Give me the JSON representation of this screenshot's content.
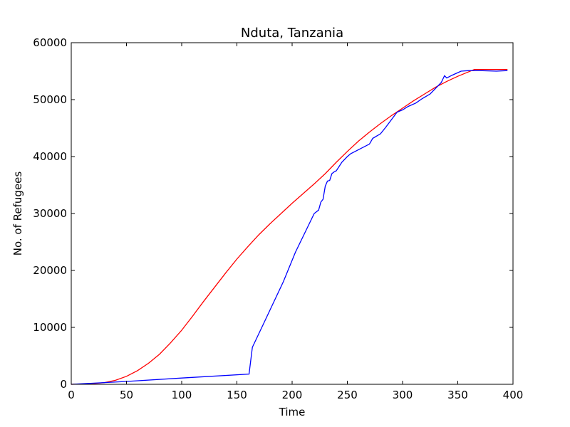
{
  "chart_data": {
    "type": "line",
    "title": "Nduta, Tanzania",
    "xlabel": "Time",
    "ylabel": "No. of Refugees",
    "xlim": [
      0,
      400
    ],
    "ylim": [
      0,
      60000
    ],
    "xticks": [
      0,
      50,
      100,
      150,
      200,
      250,
      300,
      350,
      400
    ],
    "yticks": [
      0,
      10000,
      20000,
      30000,
      40000,
      50000,
      60000
    ],
    "grid": false,
    "legend": "none",
    "series": [
      {
        "color": "#ff0000",
        "points": [
          [
            0,
            0
          ],
          [
            10,
            50
          ],
          [
            20,
            130
          ],
          [
            30,
            300
          ],
          [
            40,
            700
          ],
          [
            50,
            1400
          ],
          [
            60,
            2400
          ],
          [
            70,
            3700
          ],
          [
            80,
            5300
          ],
          [
            90,
            7300
          ],
          [
            100,
            9500
          ],
          [
            110,
            12000
          ],
          [
            120,
            14600
          ],
          [
            130,
            17100
          ],
          [
            140,
            19600
          ],
          [
            150,
            22000
          ],
          [
            160,
            24200
          ],
          [
            170,
            26300
          ],
          [
            180,
            28200
          ],
          [
            190,
            30000
          ],
          [
            200,
            31800
          ],
          [
            210,
            33500
          ],
          [
            220,
            35200
          ],
          [
            230,
            37000
          ],
          [
            240,
            39000
          ],
          [
            250,
            40900
          ],
          [
            260,
            42700
          ],
          [
            270,
            44300
          ],
          [
            280,
            45800
          ],
          [
            290,
            47200
          ],
          [
            300,
            48500
          ],
          [
            310,
            49800
          ],
          [
            320,
            51000
          ],
          [
            330,
            52200
          ],
          [
            340,
            53200
          ],
          [
            350,
            54100
          ],
          [
            360,
            54900
          ],
          [
            365,
            55300
          ],
          [
            375,
            55300
          ],
          [
            395,
            55300
          ]
        ]
      },
      {
        "color": "#0000ff",
        "points": [
          [
            0,
            0
          ],
          [
            50,
            500
          ],
          [
            100,
            1100
          ],
          [
            161,
            1800
          ],
          [
            164,
            6500
          ],
          [
            175,
            11000
          ],
          [
            192,
            18000
          ],
          [
            203,
            23200
          ],
          [
            210,
            26000
          ],
          [
            215,
            28000
          ],
          [
            220,
            30000
          ],
          [
            224,
            30600
          ],
          [
            226,
            32000
          ],
          [
            228,
            32500
          ],
          [
            230,
            34800
          ],
          [
            232,
            35700
          ],
          [
            234,
            35800
          ],
          [
            236,
            37000
          ],
          [
            238,
            37300
          ],
          [
            240,
            37500
          ],
          [
            245,
            39000
          ],
          [
            250,
            40000
          ],
          [
            253,
            40500
          ],
          [
            260,
            41200
          ],
          [
            265,
            41700
          ],
          [
            270,
            42200
          ],
          [
            273,
            43200
          ],
          [
            280,
            44000
          ],
          [
            285,
            45200
          ],
          [
            290,
            46500
          ],
          [
            295,
            47800
          ],
          [
            300,
            48200
          ],
          [
            305,
            48800
          ],
          [
            312,
            49400
          ],
          [
            318,
            50200
          ],
          [
            325,
            51000
          ],
          [
            330,
            52000
          ],
          [
            335,
            53000
          ],
          [
            338,
            54200
          ],
          [
            340,
            53800
          ],
          [
            345,
            54300
          ],
          [
            353,
            55000
          ],
          [
            360,
            55100
          ],
          [
            370,
            55100
          ],
          [
            385,
            55000
          ],
          [
            395,
            55100
          ]
        ]
      }
    ]
  }
}
